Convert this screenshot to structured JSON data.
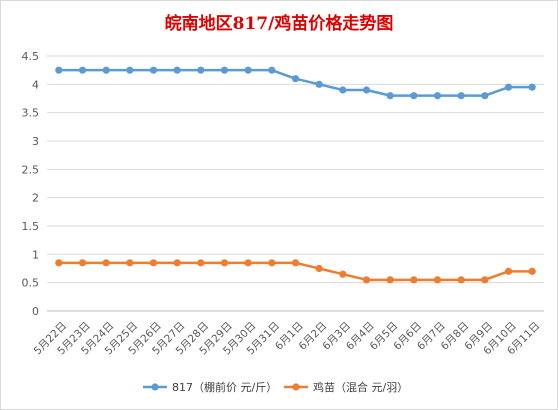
{
  "chart_data": {
    "type": "line",
    "title": "皖南地区817/鸡苗价格走势图",
    "categories": [
      "5月22日",
      "5月23日",
      "5月24日",
      "5月25日",
      "5月26日",
      "5月27日",
      "5月28日",
      "5月29日",
      "5月30日",
      "5月31日",
      "6月1日",
      "6月2日",
      "6月3日",
      "6月4日",
      "6月5日",
      "6月6日",
      "6月7日",
      "6月8日",
      "6月9日",
      "6月10日",
      "6月11日"
    ],
    "series": [
      {
        "name": "817（棚前价 元/斤）",
        "color": "#5b9bd5",
        "values": [
          4.25,
          4.25,
          4.25,
          4.25,
          4.25,
          4.25,
          4.25,
          4.25,
          4.25,
          4.25,
          4.1,
          4.0,
          3.9,
          3.9,
          3.8,
          3.8,
          3.8,
          3.8,
          3.8,
          3.95,
          3.95
        ]
      },
      {
        "name": "鸡苗（混合 元/羽）",
        "color": "#ed7d31",
        "values": [
          0.85,
          0.85,
          0.85,
          0.85,
          0.85,
          0.85,
          0.85,
          0.85,
          0.85,
          0.85,
          0.85,
          0.75,
          0.65,
          0.55,
          0.55,
          0.55,
          0.55,
          0.55,
          0.55,
          0.7,
          0.7
        ]
      }
    ],
    "ylim": [
      0,
      4.5
    ],
    "yticks": [
      "0",
      "0.5",
      "1",
      "1.5",
      "2",
      "2.5",
      "3",
      "3.5",
      "4",
      "4.5"
    ],
    "ytick_values": [
      0,
      0.5,
      1,
      1.5,
      2,
      2.5,
      3,
      3.5,
      4,
      4.5
    ],
    "grid": true,
    "legend": "bottom"
  }
}
